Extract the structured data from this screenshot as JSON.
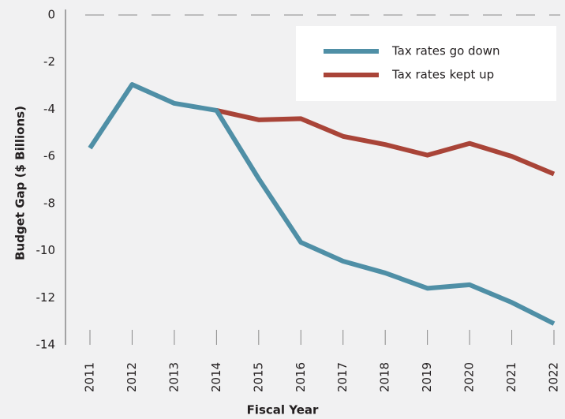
{
  "chart_data": {
    "type": "line",
    "xlabel": "Fiscal Year",
    "ylabel": "Budget Gap ($ Billions)",
    "categories": [
      "2011",
      "2012",
      "2013",
      "2014",
      "2015",
      "2016",
      "2017",
      "2018",
      "2019",
      "2020",
      "2021",
      "2022"
    ],
    "series": [
      {
        "name": "Tax rates go down",
        "color": "#4f8fa6",
        "values": [
          -5.65,
          -2.95,
          -3.75,
          -4.05,
          -6.95,
          -9.65,
          -10.45,
          -10.95,
          -11.6,
          -11.45,
          -12.2,
          -13.1
        ]
      },
      {
        "name": "Tax rates kept up",
        "color": "#a94438",
        "values": [
          null,
          null,
          null,
          -4.05,
          -4.45,
          -4.4,
          -5.15,
          -5.5,
          -5.95,
          -5.45,
          -6.0,
          -6.75
        ]
      }
    ],
    "ylim": [
      -14,
      0
    ],
    "yticks": [
      0,
      -2,
      -4,
      -6,
      -8,
      -10,
      -12,
      -14
    ],
    "zero_line": true,
    "legend": "upper right"
  }
}
